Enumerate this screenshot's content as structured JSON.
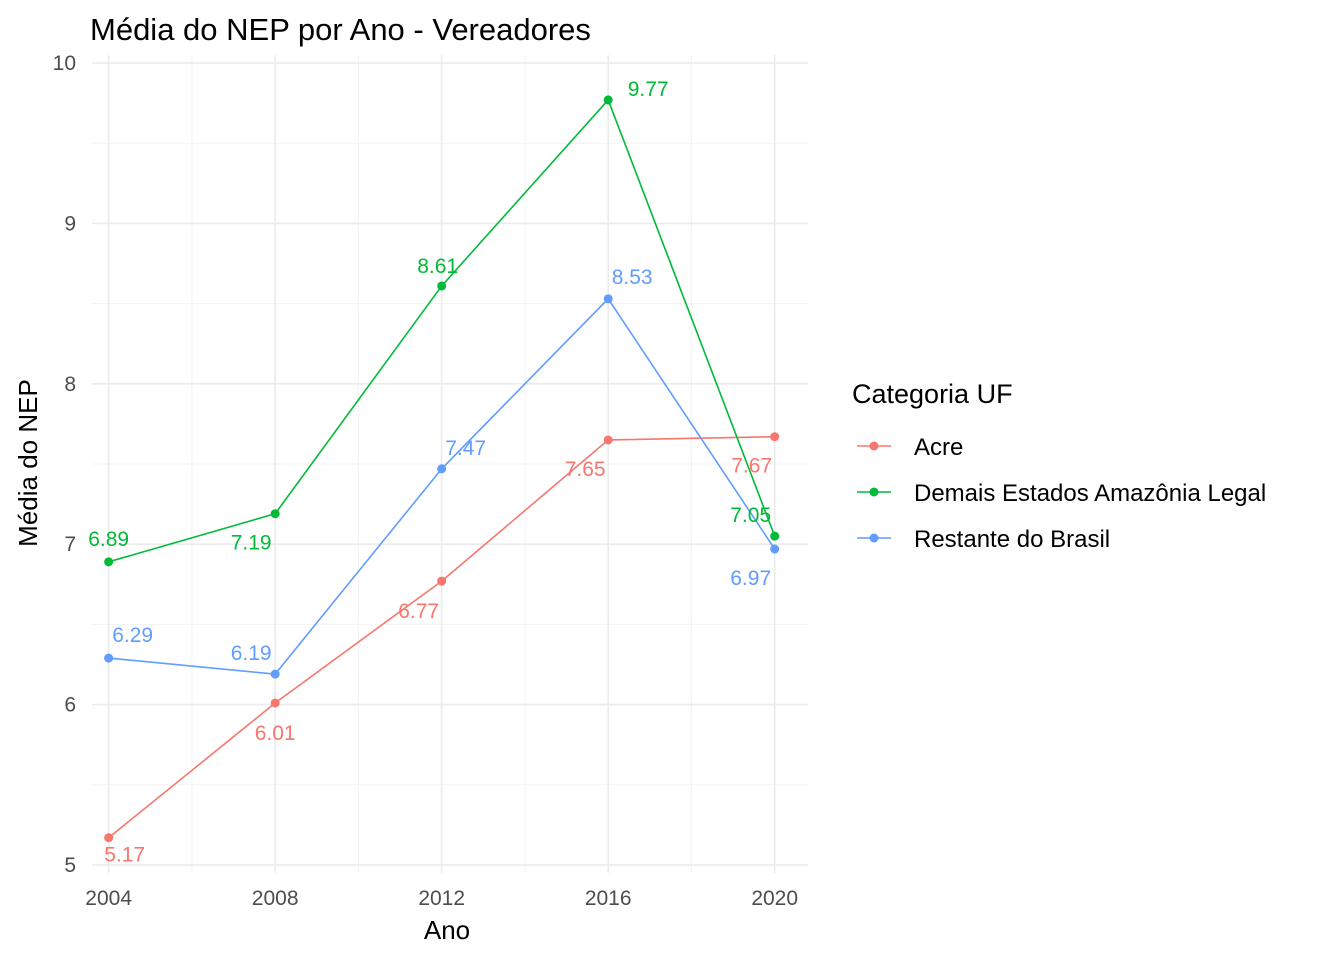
{
  "chart_data": {
    "type": "line",
    "title": "Média do NEP por Ano - Vereadores",
    "xlabel": "Ano",
    "ylabel": "Média do NEP",
    "x": [
      2004,
      2008,
      2012,
      2016,
      2020
    ],
    "xlim": [
      2003.6,
      2020.8
    ],
    "ylim": [
      4.95,
      10.05
    ],
    "x_ticks": [
      "2004",
      "2008",
      "2012",
      "2016",
      "2020"
    ],
    "y_ticks": [
      "5",
      "6",
      "7",
      "8",
      "9",
      "10"
    ],
    "grid": true,
    "legend": {
      "title": "Categoria UF",
      "position": "right"
    },
    "series": [
      {
        "name": "Acre",
        "color": "#F8766D",
        "values": [
          5.17,
          6.01,
          6.77,
          7.65,
          7.67
        ],
        "labels": [
          "5.17",
          "6.01",
          "6.77",
          "7.65",
          "7.67"
        ]
      },
      {
        "name": "Demais Estados Amazônia Legal",
        "color": "#00BA38",
        "values": [
          6.89,
          7.19,
          8.61,
          9.77,
          7.05
        ],
        "labels": [
          "6.89",
          "7.19",
          "8.61",
          "9.77",
          "7.05"
        ]
      },
      {
        "name": "Restante do Brasil",
        "color": "#619CFF",
        "values": [
          6.29,
          6.19,
          7.47,
          8.53,
          6.97
        ],
        "labels": [
          "6.29",
          "6.19",
          "7.47",
          "8.53",
          "6.97"
        ]
      }
    ]
  }
}
